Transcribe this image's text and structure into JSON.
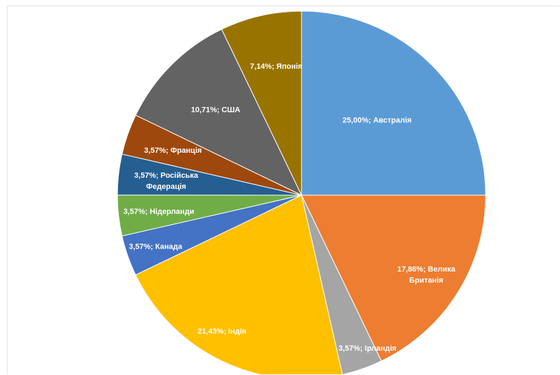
{
  "chart_data": {
    "type": "pie",
    "title": "",
    "start_angle_deg": 0,
    "direction": "clockwise",
    "slices": [
      {
        "label": "Австралія",
        "value": 25.0,
        "display": "25,00%; Австралія",
        "color": "#5B9BD5"
      },
      {
        "label": "Велика Британія",
        "value": 17.86,
        "display": "17,86%; Велика Британія",
        "color": "#ED7D31"
      },
      {
        "label": "Ірландія",
        "value": 3.57,
        "display": "3,57%; Ірландія",
        "color": "#A5A5A5"
      },
      {
        "label": "Індія",
        "value": 21.43,
        "display": "21,43%; Індія",
        "color": "#FFC000"
      },
      {
        "label": "Канада",
        "value": 3.57,
        "display": "3,57%; Канада",
        "color": "#4472C4"
      },
      {
        "label": "Нідерланди",
        "value": 3.57,
        "display": "3,57%; Нідерланди",
        "color": "#70AD47"
      },
      {
        "label": "Російська Федерація",
        "value": 3.57,
        "display": "3,57%; Російська Федерація",
        "color": "#255E91"
      },
      {
        "label": "Франція",
        "value": 3.57,
        "display": "3,57%; Франція",
        "color": "#9E480E"
      },
      {
        "label": "США",
        "value": 10.71,
        "display": "10,71%; США",
        "color": "#636363"
      },
      {
        "label": "Японія",
        "value": 7.14,
        "display": "7,14%; Японія",
        "color": "#997300"
      }
    ],
    "legend": "none"
  }
}
